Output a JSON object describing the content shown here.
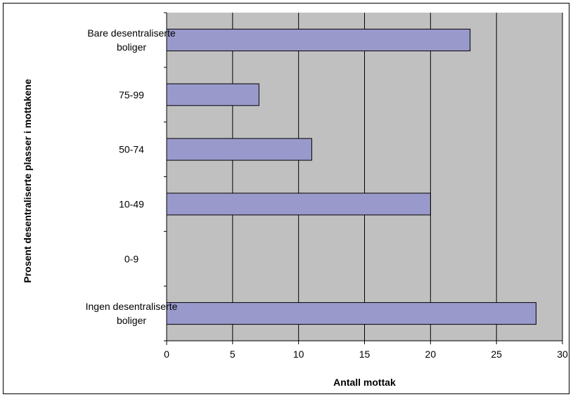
{
  "chart_data": {
    "type": "bar",
    "orientation": "horizontal",
    "categories": [
      [
        "Bare desentraliserte",
        "boliger"
      ],
      [
        "75-99"
      ],
      [
        "50-74"
      ],
      [
        "10-49"
      ],
      [
        "0-9"
      ],
      [
        "Ingen desentraliserte",
        "boliger"
      ]
    ],
    "values": [
      23,
      7,
      11,
      20,
      0,
      28
    ],
    "xlabel": "Antall mottak",
    "ylabel": "Prosent desentraliserte plasser i mottakene",
    "xlim": [
      0,
      30
    ],
    "xticks": [
      "0",
      "5",
      "10",
      "15",
      "20",
      "25",
      "30"
    ],
    "grid": true,
    "colors": {
      "plot_background": "#c0c0c0",
      "bar_fill": "#9999cc",
      "bar_stroke": "#000000",
      "gridline": "#000000"
    }
  }
}
